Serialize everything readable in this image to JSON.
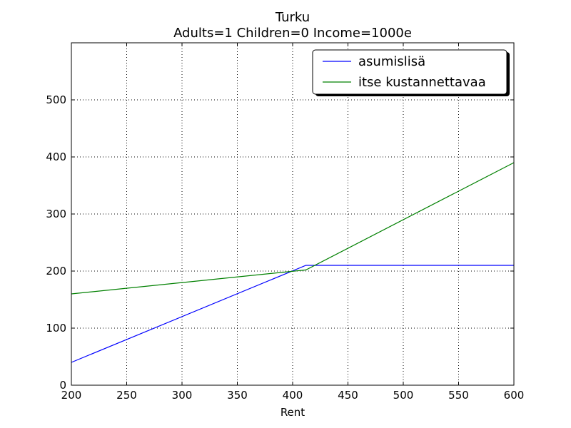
{
  "chart_data": {
    "type": "line",
    "title": "Turku",
    "subtitle": "Adults=1 Children=0 Income=1000e",
    "xlabel": "Rent",
    "ylabel": "",
    "xlim": [
      200,
      600
    ],
    "ylim": [
      0,
      600
    ],
    "x_ticks": [
      200,
      250,
      300,
      350,
      400,
      450,
      500,
      550,
      600
    ],
    "y_ticks": [
      0,
      100,
      200,
      300,
      400,
      500
    ],
    "grid": true,
    "legend_position": "top-right",
    "series": [
      {
        "name": "asumislisä",
        "color": "#0000ff",
        "points": [
          [
            200,
            40
          ],
          [
            412,
            210
          ],
          [
            600,
            210
          ]
        ]
      },
      {
        "name": "itse kustannettavaa",
        "color": "#008000",
        "points": [
          [
            200,
            160
          ],
          [
            412,
            202
          ],
          [
            600,
            390
          ]
        ]
      }
    ]
  }
}
